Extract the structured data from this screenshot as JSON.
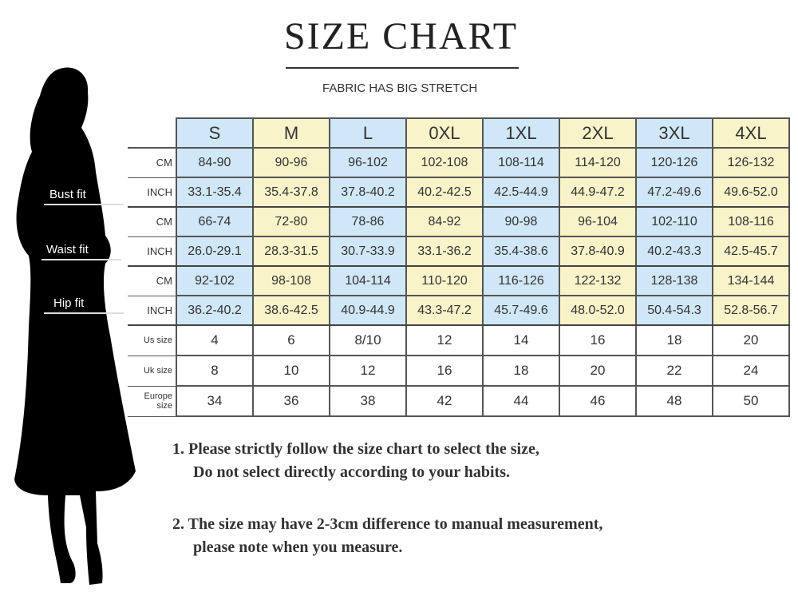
{
  "title": "SIZE CHART",
  "subtitle": "FABRIC HAS BIG STRETCH",
  "fit_labels": {
    "bust": "Bust fit",
    "waist": "Waist fit",
    "hip": "Hip fit"
  },
  "sizes": [
    "S",
    "M",
    "L",
    "0XL",
    "1XL",
    "2XL",
    "3XL",
    "4XL"
  ],
  "rows": [
    {
      "label": "CM",
      "values": [
        "84-90",
        "90-96",
        "96-102",
        "102-108",
        "108-114",
        "114-120",
        "120-126",
        "126-132"
      ]
    },
    {
      "label": "INCH",
      "values": [
        "33.1-35.4",
        "35.4-37.8",
        "37.8-40.2",
        "40.2-42.5",
        "42.5-44.9",
        "44.9-47.2",
        "47.2-49.6",
        "49.6-52.0"
      ]
    },
    {
      "label": "CM",
      "values": [
        "66-74",
        "72-80",
        "78-86",
        "84-92",
        "90-98",
        "96-104",
        "102-110",
        "108-116"
      ]
    },
    {
      "label": "INCH",
      "values": [
        "26.0-29.1",
        "28.3-31.5",
        "30.7-33.9",
        "33.1-36.2",
        "35.4-38.6",
        "37.8-40.9",
        "40.2-43.3",
        "42.5-45.7"
      ]
    },
    {
      "label": "CM",
      "values": [
        "92-102",
        "98-108",
        "104-114",
        "110-120",
        "116-126",
        "122-132",
        "128-138",
        "134-144"
      ]
    },
    {
      "label": "INCH",
      "values": [
        "36.2-40.2",
        "38.6-42.5",
        "40.9-44.9",
        "43.3-47.2",
        "45.7-49.6",
        "48.0-52.0",
        "50.4-54.3",
        "52.8-56.7"
      ]
    },
    {
      "label": "Us size",
      "values": [
        "4",
        "6",
        "8/10",
        "12",
        "14",
        "16",
        "18",
        "20"
      ]
    },
    {
      "label": "Uk size",
      "values": [
        "8",
        "10",
        "12",
        "16",
        "18",
        "20",
        "22",
        "24"
      ]
    },
    {
      "label": "Europe size",
      "values": [
        "34",
        "36",
        "38",
        "42",
        "44",
        "46",
        "48",
        "50"
      ]
    }
  ],
  "colors": {
    "blue": "#cfe7f6",
    "yellow": "#f8f3c9"
  },
  "notes": [
    {
      "line1": "1.  Please strictly follow the size chart to select the size,",
      "line2": "Do not select directly according to your habits."
    },
    {
      "line1": "2.  The size may have 2-3cm difference  to manual measurement,",
      "line2": "please note when you measure."
    }
  ]
}
